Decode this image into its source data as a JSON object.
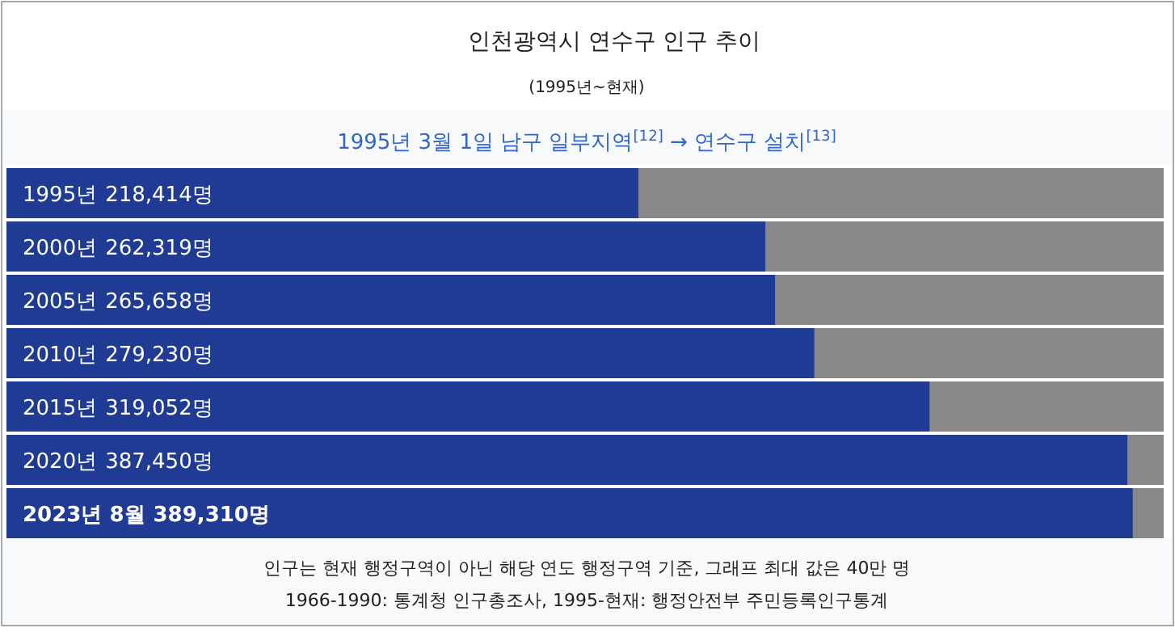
{
  "chart_data": {
    "type": "bar",
    "orientation": "horizontal",
    "title": "인천광역시 연수구 인구 추이",
    "subtitle": "(1995년~현재)",
    "categories": [
      "1995년",
      "2000년",
      "2005년",
      "2010년",
      "2015년",
      "2020년",
      "2023년 8월"
    ],
    "values": [
      218414,
      262319,
      265658,
      279230,
      319052,
      387450,
      389310
    ],
    "value_labels": [
      "218,414명",
      "262,319명",
      "265,658명",
      "279,230명",
      "319,052명",
      "387,450명",
      "389,310명"
    ],
    "color": "#203b94",
    "xlim": [
      0,
      400000
    ],
    "annotations": [
      "1995년 3월 1일 남구 일부지역$^{[12]}$ → 연수구 설치$^{[13]}$",
      "인구는 현재 행정구역이 아닌 해당 연도 행정구역 기준, 그래프 최대 값은 40만 명",
      "1966-1990: 통계청 인구총조사, 1995-현재: 행정안전부 주민등록인구통계"
    ]
  }
}
